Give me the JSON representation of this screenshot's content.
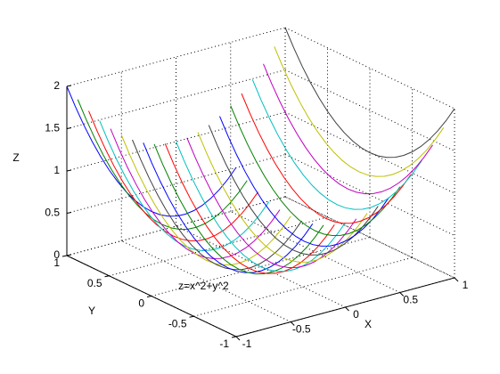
{
  "chart_data": {
    "type": "line3d",
    "annotation": "z=x^2+y^2",
    "xlabel": "X",
    "ylabel": "Y",
    "zlabel": "Z",
    "xlim": [
      -1,
      1
    ],
    "ylim": [
      -1,
      1
    ],
    "zlim": [
      0,
      2
    ],
    "xticks": [
      -1,
      -0.5,
      0,
      0.5,
      1
    ],
    "yticks": [
      -1,
      -0.5,
      0,
      0.5,
      1
    ],
    "zticks": [
      0,
      0.5,
      1,
      1.5,
      2
    ],
    "grid": true,
    "x": [
      -1,
      -0.9,
      -0.8,
      -0.7,
      -0.6,
      -0.5,
      -0.4,
      -0.3,
      -0.2,
      -0.1,
      0,
      0.1,
      0.2,
      0.3,
      0.4,
      0.5,
      0.6,
      0.7,
      0.8,
      0.9,
      1
    ],
    "y": [
      1,
      0.9,
      0.8,
      0.7,
      0.6,
      0.5,
      0.4,
      0.3,
      0.2,
      0.1,
      0,
      -0.1,
      -0.2,
      -0.3,
      -0.4,
      -0.5,
      -0.6,
      -0.7,
      -0.8,
      -0.9,
      -1
    ],
    "series": [
      {
        "color": "#0000ff",
        "values": [
          2,
          1.81,
          1.64,
          1.49,
          1.36,
          1.25,
          1.16,
          1.09,
          1.04,
          1.01,
          1,
          1.01,
          1.04,
          1.09,
          1.16,
          1.25,
          1.36,
          1.49,
          1.64,
          1.81,
          2
        ]
      },
      {
        "color": "#008000",
        "values": [
          1.81,
          1.62,
          1.45,
          1.3,
          1.17,
          1.06,
          0.97,
          0.9,
          0.85,
          0.82,
          0.81,
          0.82,
          0.85,
          0.9,
          0.97,
          1.06,
          1.17,
          1.3,
          1.45,
          1.62,
          1.81
        ]
      },
      {
        "color": "#ff0000",
        "values": [
          1.64,
          1.45,
          1.28,
          1.13,
          1,
          0.89,
          0.8,
          0.73,
          0.68,
          0.65,
          0.64,
          0.65,
          0.68,
          0.73,
          0.8,
          0.89,
          1,
          1.13,
          1.28,
          1.45,
          1.64
        ]
      },
      {
        "color": "#00bfbf",
        "values": [
          1.49,
          1.3,
          1.13,
          0.98,
          0.85,
          0.74,
          0.65,
          0.58,
          0.53,
          0.5,
          0.49,
          0.5,
          0.53,
          0.58,
          0.65,
          0.74,
          0.85,
          0.98,
          1.13,
          1.3,
          1.49
        ]
      },
      {
        "color": "#bf00bf",
        "values": [
          1.36,
          1.17,
          1,
          0.85,
          0.72,
          0.61,
          0.52,
          0.45,
          0.4,
          0.37,
          0.36,
          0.37,
          0.4,
          0.45,
          0.52,
          0.61,
          0.72,
          0.85,
          1,
          1.17,
          1.36
        ]
      },
      {
        "color": "#bfbf00",
        "values": [
          1.25,
          1.06,
          0.89,
          0.74,
          0.61,
          0.5,
          0.41,
          0.34,
          0.29,
          0.26,
          0.25,
          0.26,
          0.29,
          0.34,
          0.41,
          0.5,
          0.61,
          0.74,
          0.89,
          1.06,
          1.25
        ]
      },
      {
        "color": "#404040",
        "values": [
          1.16,
          0.97,
          0.8,
          0.65,
          0.52,
          0.41,
          0.32,
          0.25,
          0.2,
          0.17,
          0.16,
          0.17,
          0.2,
          0.25,
          0.32,
          0.41,
          0.52,
          0.65,
          0.8,
          0.97,
          1.16
        ]
      },
      {
        "color": "#0000ff",
        "values": [
          1.09,
          0.9,
          0.73,
          0.58,
          0.45,
          0.34,
          0.25,
          0.18,
          0.13,
          0.1,
          0.09,
          0.1,
          0.13,
          0.18,
          0.25,
          0.34,
          0.45,
          0.58,
          0.73,
          0.9,
          1.09
        ]
      },
      {
        "color": "#008000",
        "values": [
          1.04,
          0.85,
          0.68,
          0.53,
          0.4,
          0.29,
          0.2,
          0.13,
          0.08,
          0.05,
          0.04,
          0.05,
          0.08,
          0.13,
          0.2,
          0.29,
          0.4,
          0.53,
          0.68,
          0.85,
          1.04
        ]
      },
      {
        "color": "#ff0000",
        "values": [
          1.01,
          0.82,
          0.65,
          0.5,
          0.37,
          0.26,
          0.17,
          0.1,
          0.05,
          0.02,
          0.01,
          0.02,
          0.05,
          0.1,
          0.17,
          0.26,
          0.37,
          0.5,
          0.65,
          0.82,
          1.01
        ]
      },
      {
        "color": "#00bfbf",
        "values": [
          1,
          0.81,
          0.64,
          0.49,
          0.36,
          0.25,
          0.16,
          0.09,
          0.04,
          0.01,
          0,
          0.01,
          0.04,
          0.09,
          0.16,
          0.25,
          0.36,
          0.49,
          0.64,
          0.81,
          1
        ]
      },
      {
        "color": "#bf00bf",
        "values": [
          1.01,
          0.82,
          0.65,
          0.5,
          0.37,
          0.26,
          0.17,
          0.1,
          0.05,
          0.02,
          0.01,
          0.02,
          0.05,
          0.1,
          0.17,
          0.26,
          0.37,
          0.5,
          0.65,
          0.82,
          1.01
        ]
      },
      {
        "color": "#bfbf00",
        "values": [
          1.04,
          0.85,
          0.68,
          0.53,
          0.4,
          0.29,
          0.2,
          0.13,
          0.08,
          0.05,
          0.04,
          0.05,
          0.08,
          0.13,
          0.2,
          0.29,
          0.4,
          0.53,
          0.68,
          0.85,
          1.04
        ]
      },
      {
        "color": "#404040",
        "values": [
          1.09,
          0.9,
          0.73,
          0.58,
          0.45,
          0.34,
          0.25,
          0.18,
          0.13,
          0.1,
          0.09,
          0.1,
          0.13,
          0.18,
          0.25,
          0.34,
          0.45,
          0.58,
          0.73,
          0.9,
          1.09
        ]
      },
      {
        "color": "#0000ff",
        "values": [
          1.16,
          0.97,
          0.8,
          0.65,
          0.52,
          0.41,
          0.32,
          0.25,
          0.2,
          0.17,
          0.16,
          0.17,
          0.2,
          0.25,
          0.32,
          0.41,
          0.52,
          0.65,
          0.8,
          0.97,
          1.16
        ]
      },
      {
        "color": "#008000",
        "values": [
          1.25,
          1.06,
          0.89,
          0.74,
          0.61,
          0.5,
          0.41,
          0.34,
          0.29,
          0.26,
          0.25,
          0.26,
          0.29,
          0.34,
          0.41,
          0.5,
          0.61,
          0.74,
          0.89,
          1.06,
          1.25
        ]
      },
      {
        "color": "#ff0000",
        "values": [
          1.36,
          1.17,
          1,
          0.85,
          0.72,
          0.61,
          0.52,
          0.45,
          0.4,
          0.37,
          0.36,
          0.37,
          0.4,
          0.45,
          0.52,
          0.61,
          0.72,
          0.85,
          1,
          1.17,
          1.36
        ]
      },
      {
        "color": "#00bfbf",
        "values": [
          1.49,
          1.3,
          1.13,
          0.98,
          0.85,
          0.74,
          0.65,
          0.58,
          0.53,
          0.5,
          0.49,
          0.5,
          0.53,
          0.58,
          0.65,
          0.74,
          0.85,
          0.98,
          1.13,
          1.3,
          1.49
        ]
      },
      {
        "color": "#bf00bf",
        "values": [
          1.64,
          1.45,
          1.28,
          1.13,
          1,
          0.89,
          0.8,
          0.73,
          0.68,
          0.65,
          0.64,
          0.65,
          0.68,
          0.73,
          0.8,
          0.89,
          1,
          1.13,
          1.28,
          1.45,
          1.64
        ]
      },
      {
        "color": "#bfbf00",
        "values": [
          1.81,
          1.62,
          1.45,
          1.3,
          1.17,
          1.06,
          0.97,
          0.9,
          0.85,
          0.82,
          0.81,
          0.82,
          0.85,
          0.9,
          0.97,
          1.06,
          1.17,
          1.3,
          1.45,
          1.62,
          1.81
        ]
      },
      {
        "color": "#404040",
        "values": [
          2,
          1.81,
          1.64,
          1.49,
          1.36,
          1.25,
          1.16,
          1.09,
          1.04,
          1.01,
          1,
          1.01,
          1.04,
          1.09,
          1.16,
          1.25,
          1.36,
          1.49,
          1.64,
          1.81,
          2
        ]
      }
    ]
  }
}
